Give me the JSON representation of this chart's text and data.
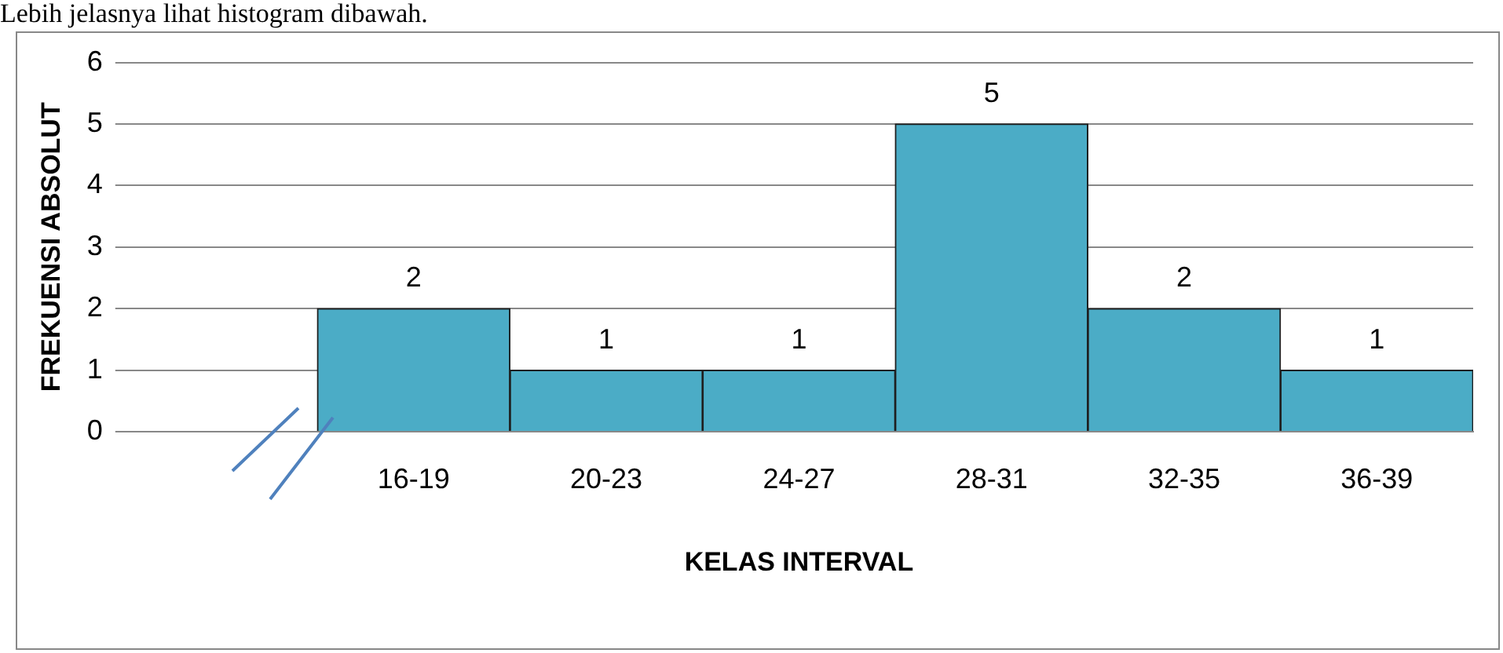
{
  "chart_data": {
    "type": "bar",
    "xlabel": "KELAS INTERVAL",
    "ylabel": "FREKUENSI ABSOLUT",
    "annotations": [
      "Lebih jelasnya lihat  histogram dibawah."
    ],
    "categories": [
      null,
      "16-19",
      "20-23",
      "24-27",
      "28-31",
      "32-35",
      "36-39"
    ],
    "values": [
      null,
      2,
      1,
      1,
      5,
      2,
      1
    ],
    "color": "#4bacc6",
    "data_labels": true,
    "grid": "y",
    "legend": false,
    "ylim": [
      0,
      6
    ],
    "yticks": [
      0,
      1,
      2,
      3,
      4,
      5,
      6
    ]
  }
}
